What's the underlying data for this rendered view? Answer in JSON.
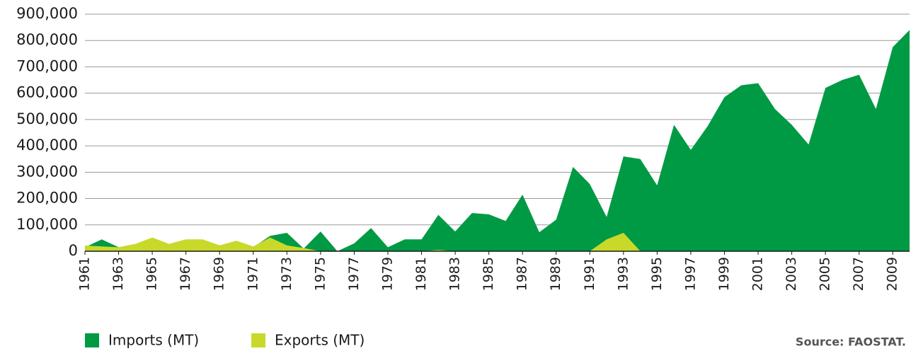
{
  "chart_data": {
    "type": "area",
    "x": [
      1961,
      1962,
      1963,
      1964,
      1965,
      1966,
      1967,
      1968,
      1969,
      1970,
      1971,
      1972,
      1973,
      1974,
      1975,
      1976,
      1977,
      1978,
      1979,
      1980,
      1981,
      1982,
      1983,
      1984,
      1985,
      1986,
      1987,
      1988,
      1989,
      1990,
      1991,
      1992,
      1993,
      1994,
      1995,
      1996,
      1997,
      1998,
      1999,
      2000,
      2001,
      2002,
      2003,
      2004,
      2005,
      2006,
      2007,
      2008,
      2009,
      2010
    ],
    "xlim": [
      1961,
      2010
    ],
    "xticks": [
      1961,
      1963,
      1965,
      1967,
      1969,
      1971,
      1973,
      1975,
      1977,
      1979,
      1981,
      1983,
      1985,
      1987,
      1989,
      1991,
      1993,
      1995,
      1997,
      1999,
      2001,
      2003,
      2005,
      2007,
      2009
    ],
    "ylim": [
      0,
      900000
    ],
    "yticks": [
      0,
      {
        "value": 100000,
        "label": "100,000"
      },
      {
        "value": 200000,
        "label": "200,000"
      },
      {
        "value": 300000,
        "label": "300,000"
      },
      {
        "value": 400000,
        "label": "400,000"
      },
      {
        "value": 500000,
        "label": "500,000"
      },
      {
        "value": 600000,
        "label": "600,000"
      },
      {
        "value": 700000,
        "label": "700,000"
      },
      {
        "value": 800000,
        "label": "800,000"
      },
      {
        "value": 900000,
        "label": "900,000"
      }
    ],
    "grid": true,
    "series": [
      {
        "name": "Imports (MT)",
        "color": "#009a44",
        "values": [
          15000,
          45000,
          15000,
          20000,
          35000,
          20000,
          35000,
          40000,
          20000,
          30000,
          15000,
          58000,
          70000,
          10000,
          75000,
          0,
          30000,
          88000,
          15000,
          45000,
          45000,
          138000,
          75000,
          145000,
          140000,
          115000,
          215000,
          72000,
          120000,
          320000,
          255000,
          130000,
          360000,
          350000,
          250000,
          480000,
          385000,
          475000,
          585000,
          630000,
          638000,
          540000,
          480000,
          405000,
          620000,
          650000,
          670000,
          540000,
          775000,
          840000
        ]
      },
      {
        "name": "Exports (MT)",
        "color": "#c8d92a",
        "values": [
          22000,
          18000,
          15000,
          28000,
          52000,
          28000,
          45000,
          45000,
          22000,
          40000,
          18000,
          52000,
          22000,
          12000,
          0,
          0,
          0,
          0,
          0,
          0,
          0,
          5000,
          0,
          0,
          0,
          0,
          0,
          0,
          0,
          0,
          0,
          45000,
          70000,
          0,
          0,
          0,
          0,
          0,
          0,
          0,
          0,
          0,
          0,
          0,
          0,
          0,
          0,
          0,
          0,
          0
        ]
      }
    ],
    "source": "Source: FAOSTAT."
  }
}
